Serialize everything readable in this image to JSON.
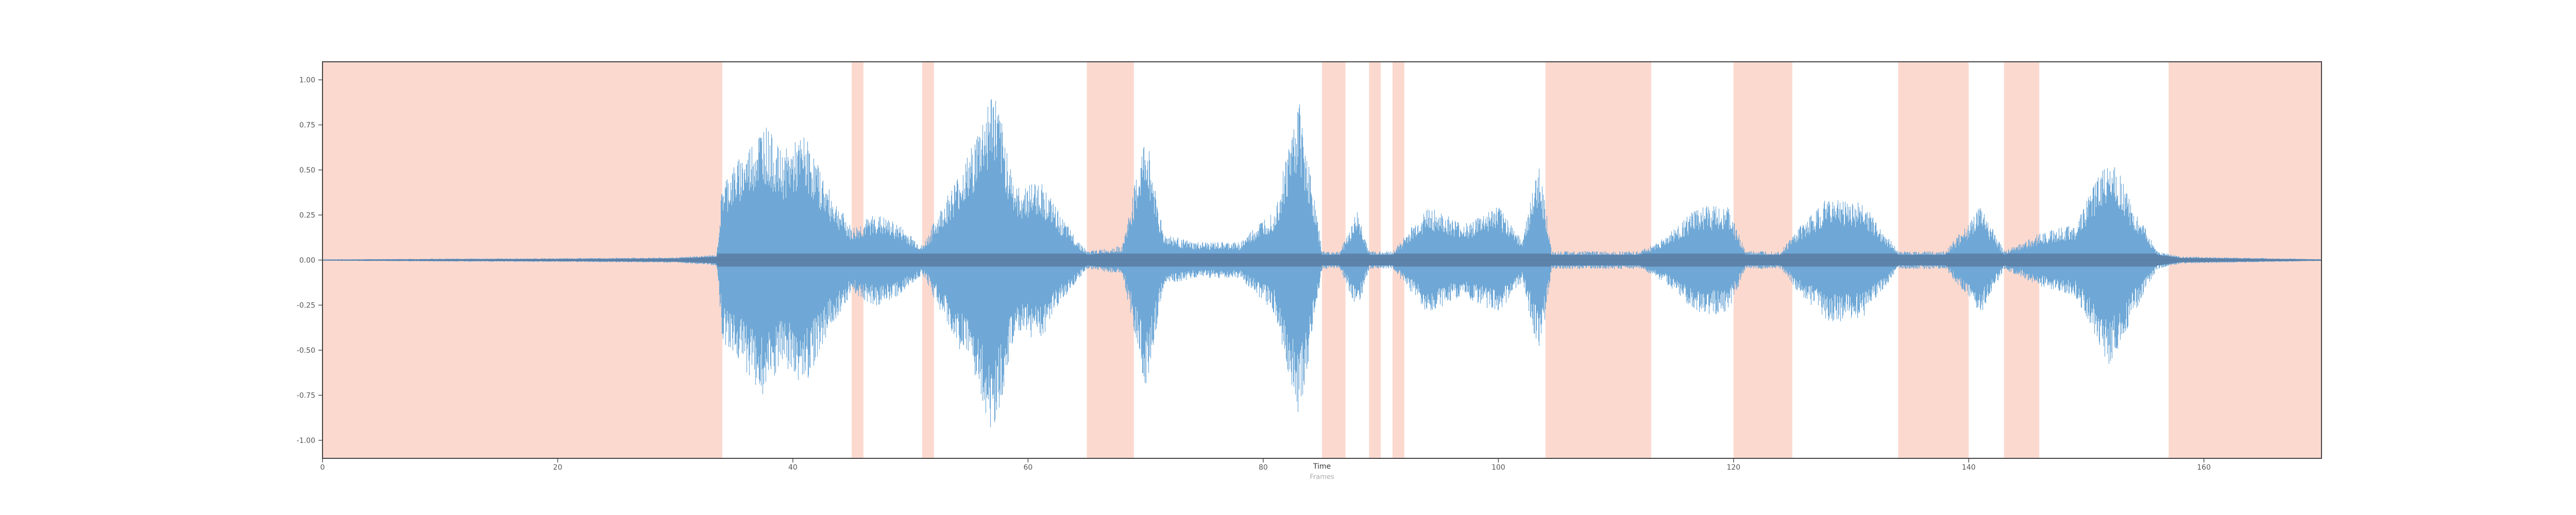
{
  "chart_data": {
    "type": "area",
    "title": "",
    "xlabel": "Time",
    "xlabel_secondary": "Frames",
    "ylabel": "",
    "xlim": [
      0,
      170
    ],
    "ylim": [
      -1.1,
      1.1
    ],
    "x_ticks": [
      0,
      20,
      40,
      60,
      80,
      100,
      120,
      140,
      160
    ],
    "x_tick_labels": [
      "0",
      "20",
      "40",
      "60",
      "80",
      "100",
      "120",
      "140",
      "160"
    ],
    "y_ticks": [
      1.0,
      0.75,
      0.5,
      0.25,
      0.0,
      -0.25,
      -0.5,
      -0.75,
      -1.0
    ],
    "y_tick_labels": [
      "1.00",
      "0.75",
      "0.50",
      "0.25",
      "0.00",
      "-0.25",
      "-0.50",
      "-0.75",
      "-1.00"
    ],
    "grid": false,
    "highlighted_regions": [
      [
        0,
        34
      ],
      [
        45,
        46
      ],
      [
        51,
        52
      ],
      [
        65,
        69
      ],
      [
        85,
        87
      ],
      [
        89,
        90
      ],
      [
        91,
        92
      ],
      [
        104,
        113
      ],
      [
        120,
        125
      ],
      [
        134,
        140
      ],
      [
        143,
        146
      ],
      [
        157,
        170
      ]
    ],
    "waveform_envelope": [
      {
        "x": 0,
        "amp": 0.004
      },
      {
        "x": 10,
        "amp": 0.008
      },
      {
        "x": 20,
        "amp": 0.01
      },
      {
        "x": 30,
        "amp": 0.015
      },
      {
        "x": 33.5,
        "amp": 0.03
      },
      {
        "x": 34,
        "amp": 0.45
      },
      {
        "x": 36,
        "amp": 0.62
      },
      {
        "x": 37.5,
        "amp": 0.78
      },
      {
        "x": 39,
        "amp": 0.6
      },
      {
        "x": 41,
        "amp": 0.7
      },
      {
        "x": 43,
        "amp": 0.4
      },
      {
        "x": 45,
        "amp": 0.18
      },
      {
        "x": 47,
        "amp": 0.26
      },
      {
        "x": 49,
        "amp": 0.2
      },
      {
        "x": 51,
        "amp": 0.08
      },
      {
        "x": 53,
        "amp": 0.35
      },
      {
        "x": 55,
        "amp": 0.6
      },
      {
        "x": 57,
        "amp": 0.98
      },
      {
        "x": 59,
        "amp": 0.4
      },
      {
        "x": 61,
        "amp": 0.45
      },
      {
        "x": 63,
        "amp": 0.22
      },
      {
        "x": 65,
        "amp": 0.05
      },
      {
        "x": 68,
        "amp": 0.08
      },
      {
        "x": 70,
        "amp": 0.72
      },
      {
        "x": 71.5,
        "amp": 0.15
      },
      {
        "x": 74,
        "amp": 0.1
      },
      {
        "x": 78,
        "amp": 0.1
      },
      {
        "x": 81,
        "amp": 0.3
      },
      {
        "x": 83,
        "amp": 0.92
      },
      {
        "x": 85,
        "amp": 0.05
      },
      {
        "x": 86.5,
        "amp": 0.05
      },
      {
        "x": 88,
        "amp": 0.28
      },
      {
        "x": 89,
        "amp": 0.05
      },
      {
        "x": 91,
        "amp": 0.05
      },
      {
        "x": 94,
        "amp": 0.3
      },
      {
        "x": 97,
        "amp": 0.2
      },
      {
        "x": 100,
        "amp": 0.3
      },
      {
        "x": 102,
        "amp": 0.12
      },
      {
        "x": 103.5,
        "amp": 0.55
      },
      {
        "x": 104.5,
        "amp": 0.05
      },
      {
        "x": 108,
        "amp": 0.05
      },
      {
        "x": 112,
        "amp": 0.05
      },
      {
        "x": 114,
        "amp": 0.12
      },
      {
        "x": 117,
        "amp": 0.3
      },
      {
        "x": 119.5,
        "amp": 0.3
      },
      {
        "x": 121,
        "amp": 0.05
      },
      {
        "x": 124,
        "amp": 0.05
      },
      {
        "x": 125.5,
        "amp": 0.18
      },
      {
        "x": 128,
        "amp": 0.35
      },
      {
        "x": 131,
        "amp": 0.32
      },
      {
        "x": 134,
        "amp": 0.05
      },
      {
        "x": 138,
        "amp": 0.05
      },
      {
        "x": 141,
        "amp": 0.3
      },
      {
        "x": 143,
        "amp": 0.05
      },
      {
        "x": 146,
        "amp": 0.15
      },
      {
        "x": 149,
        "amp": 0.2
      },
      {
        "x": 152,
        "amp": 0.6
      },
      {
        "x": 154,
        "amp": 0.3
      },
      {
        "x": 156,
        "amp": 0.05
      },
      {
        "x": 158,
        "amp": 0.02
      },
      {
        "x": 162,
        "amp": 0.015
      },
      {
        "x": 170,
        "amp": 0.005
      }
    ],
    "colors": {
      "waveform": "#6fa8d6",
      "waveform_dark": "#5b7ea6",
      "region": "#fcd9cf",
      "axis": "#555555"
    }
  }
}
